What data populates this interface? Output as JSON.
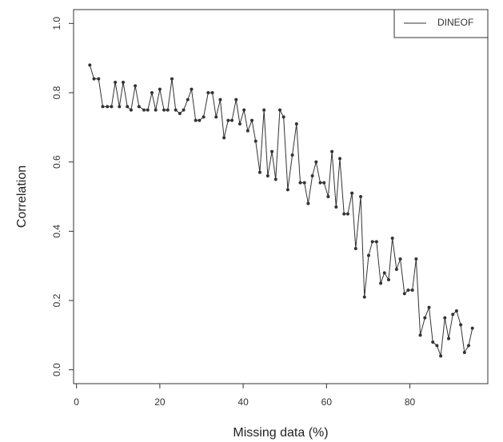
{
  "chart_data": {
    "type": "line",
    "xlabel": "Missing data (%)",
    "ylabel": "Correlation",
    "x": [
      3.2,
      4.2,
      5.3,
      6.3,
      7.4,
      8.4,
      9.3,
      10.3,
      11.2,
      12.2,
      13.1,
      14.1,
      15.0,
      16.2,
      17.1,
      18.1,
      19.0,
      20.0,
      21.0,
      21.9,
      22.9,
      23.8,
      24.8,
      25.7,
      26.7,
      27.6,
      28.6,
      29.5,
      30.5,
      31.6,
      32.6,
      33.5,
      34.5,
      35.4,
      36.4,
      37.3,
      38.3,
      39.2,
      40.2,
      41.1,
      42.1,
      43.0,
      44.0,
      45.0,
      45.9,
      46.9,
      47.8,
      48.8,
      49.7,
      50.7,
      51.8,
      52.8,
      53.7,
      54.7,
      55.6,
      56.6,
      57.5,
      58.5,
      59.4,
      60.4,
      61.3,
      62.3,
      63.2,
      64.2,
      65.1,
      66.1,
      67.0,
      68.2,
      69.1,
      70.1,
      71.0,
      72.0,
      73.0,
      73.9,
      74.9,
      75.8,
      76.8,
      77.7,
      78.7,
      79.6,
      80.6,
      81.5,
      82.5,
      83.6,
      84.6,
      85.5,
      86.5,
      87.4,
      88.4,
      89.3,
      90.3,
      91.2,
      92.2,
      93.1,
      94.1,
      95.0
    ],
    "series": [
      {
        "name": "DINEOF",
        "color": "#333333",
        "values": [
          0.88,
          0.84,
          0.84,
          0.76,
          0.76,
          0.76,
          0.83,
          0.76,
          0.83,
          0.76,
          0.75,
          0.82,
          0.76,
          0.75,
          0.75,
          0.8,
          0.75,
          0.81,
          0.75,
          0.75,
          0.84,
          0.75,
          0.74,
          0.75,
          0.78,
          0.81,
          0.72,
          0.72,
          0.73,
          0.8,
          0.8,
          0.73,
          0.78,
          0.67,
          0.72,
          0.72,
          0.78,
          0.71,
          0.75,
          0.69,
          0.72,
          0.66,
          0.57,
          0.75,
          0.56,
          0.63,
          0.55,
          0.75,
          0.73,
          0.52,
          0.62,
          0.71,
          0.54,
          0.54,
          0.48,
          0.56,
          0.6,
          0.54,
          0.54,
          0.5,
          0.63,
          0.47,
          0.61,
          0.45,
          0.45,
          0.51,
          0.35,
          0.5,
          0.21,
          0.33,
          0.37,
          0.37,
          0.25,
          0.28,
          0.26,
          0.38,
          0.29,
          0.32,
          0.22,
          0.23,
          0.23,
          0.32,
          0.1,
          0.15,
          0.18,
          0.08,
          0.07,
          0.04,
          0.15,
          0.09,
          0.16,
          0.17,
          0.13,
          0.05,
          0.07,
          0.12
        ]
      }
    ],
    "xlim": [
      -0.7,
      98.7
    ],
    "xticks": [
      0,
      20,
      40,
      60,
      80
    ],
    "ylim": [
      -0.04,
      1.04
    ],
    "yticks": [
      {
        "value": 0,
        "label": "0.0"
      },
      0.2,
      0.4,
      0.6,
      0.8,
      {
        "value": 1,
        "label": "1.0"
      }
    ],
    "legend": "topright",
    "grid": false
  }
}
